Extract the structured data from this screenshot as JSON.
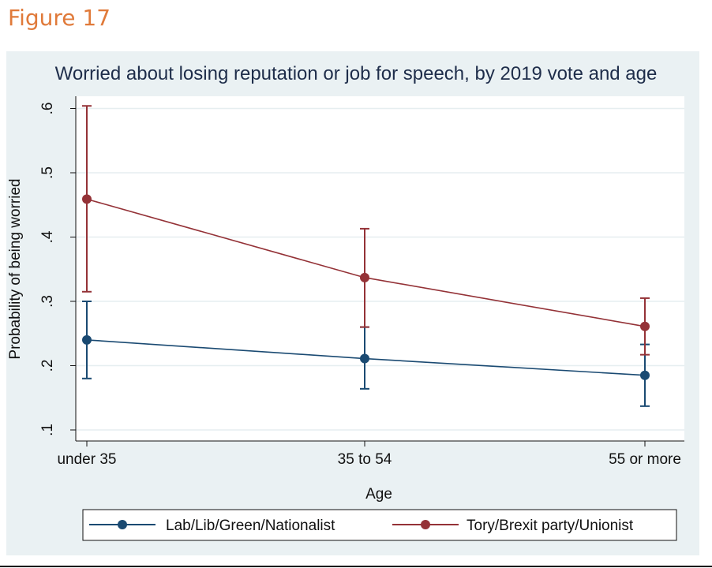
{
  "figure_label": "Figure 17",
  "colors": {
    "series1": "#1a4a72",
    "series2": "#943237",
    "background": "#eaf1f3",
    "title": "#1e2d4a"
  },
  "chart_data": {
    "type": "line",
    "title": "Worried about losing reputation or job for speech, by 2019 vote and age",
    "xlabel": "Age",
    "ylabel": "Probability of being worried",
    "categories": [
      "under 35",
      "35 to 54",
      "55 or more"
    ],
    "ylim": [
      0.1,
      0.6
    ],
    "yticks": [
      0.1,
      0.2,
      0.3,
      0.4,
      0.5,
      0.6
    ],
    "ytick_labels": [
      ".1",
      ".2",
      ".3",
      ".4",
      ".5",
      ".6"
    ],
    "grid": true,
    "legend_position": "bottom",
    "series": [
      {
        "name": "Lab/Lib/Green/Nationalist",
        "values": [
          0.24,
          0.211,
          0.185
        ],
        "ci_low": [
          0.18,
          0.164,
          0.137
        ],
        "ci_high": [
          0.3,
          0.26,
          0.233
        ]
      },
      {
        "name": "Tory/Brexit party/Unionist",
        "values": [
          0.459,
          0.337,
          0.261
        ],
        "ci_low": [
          0.315,
          0.26,
          0.217
        ],
        "ci_high": [
          0.604,
          0.413,
          0.305
        ]
      }
    ]
  }
}
